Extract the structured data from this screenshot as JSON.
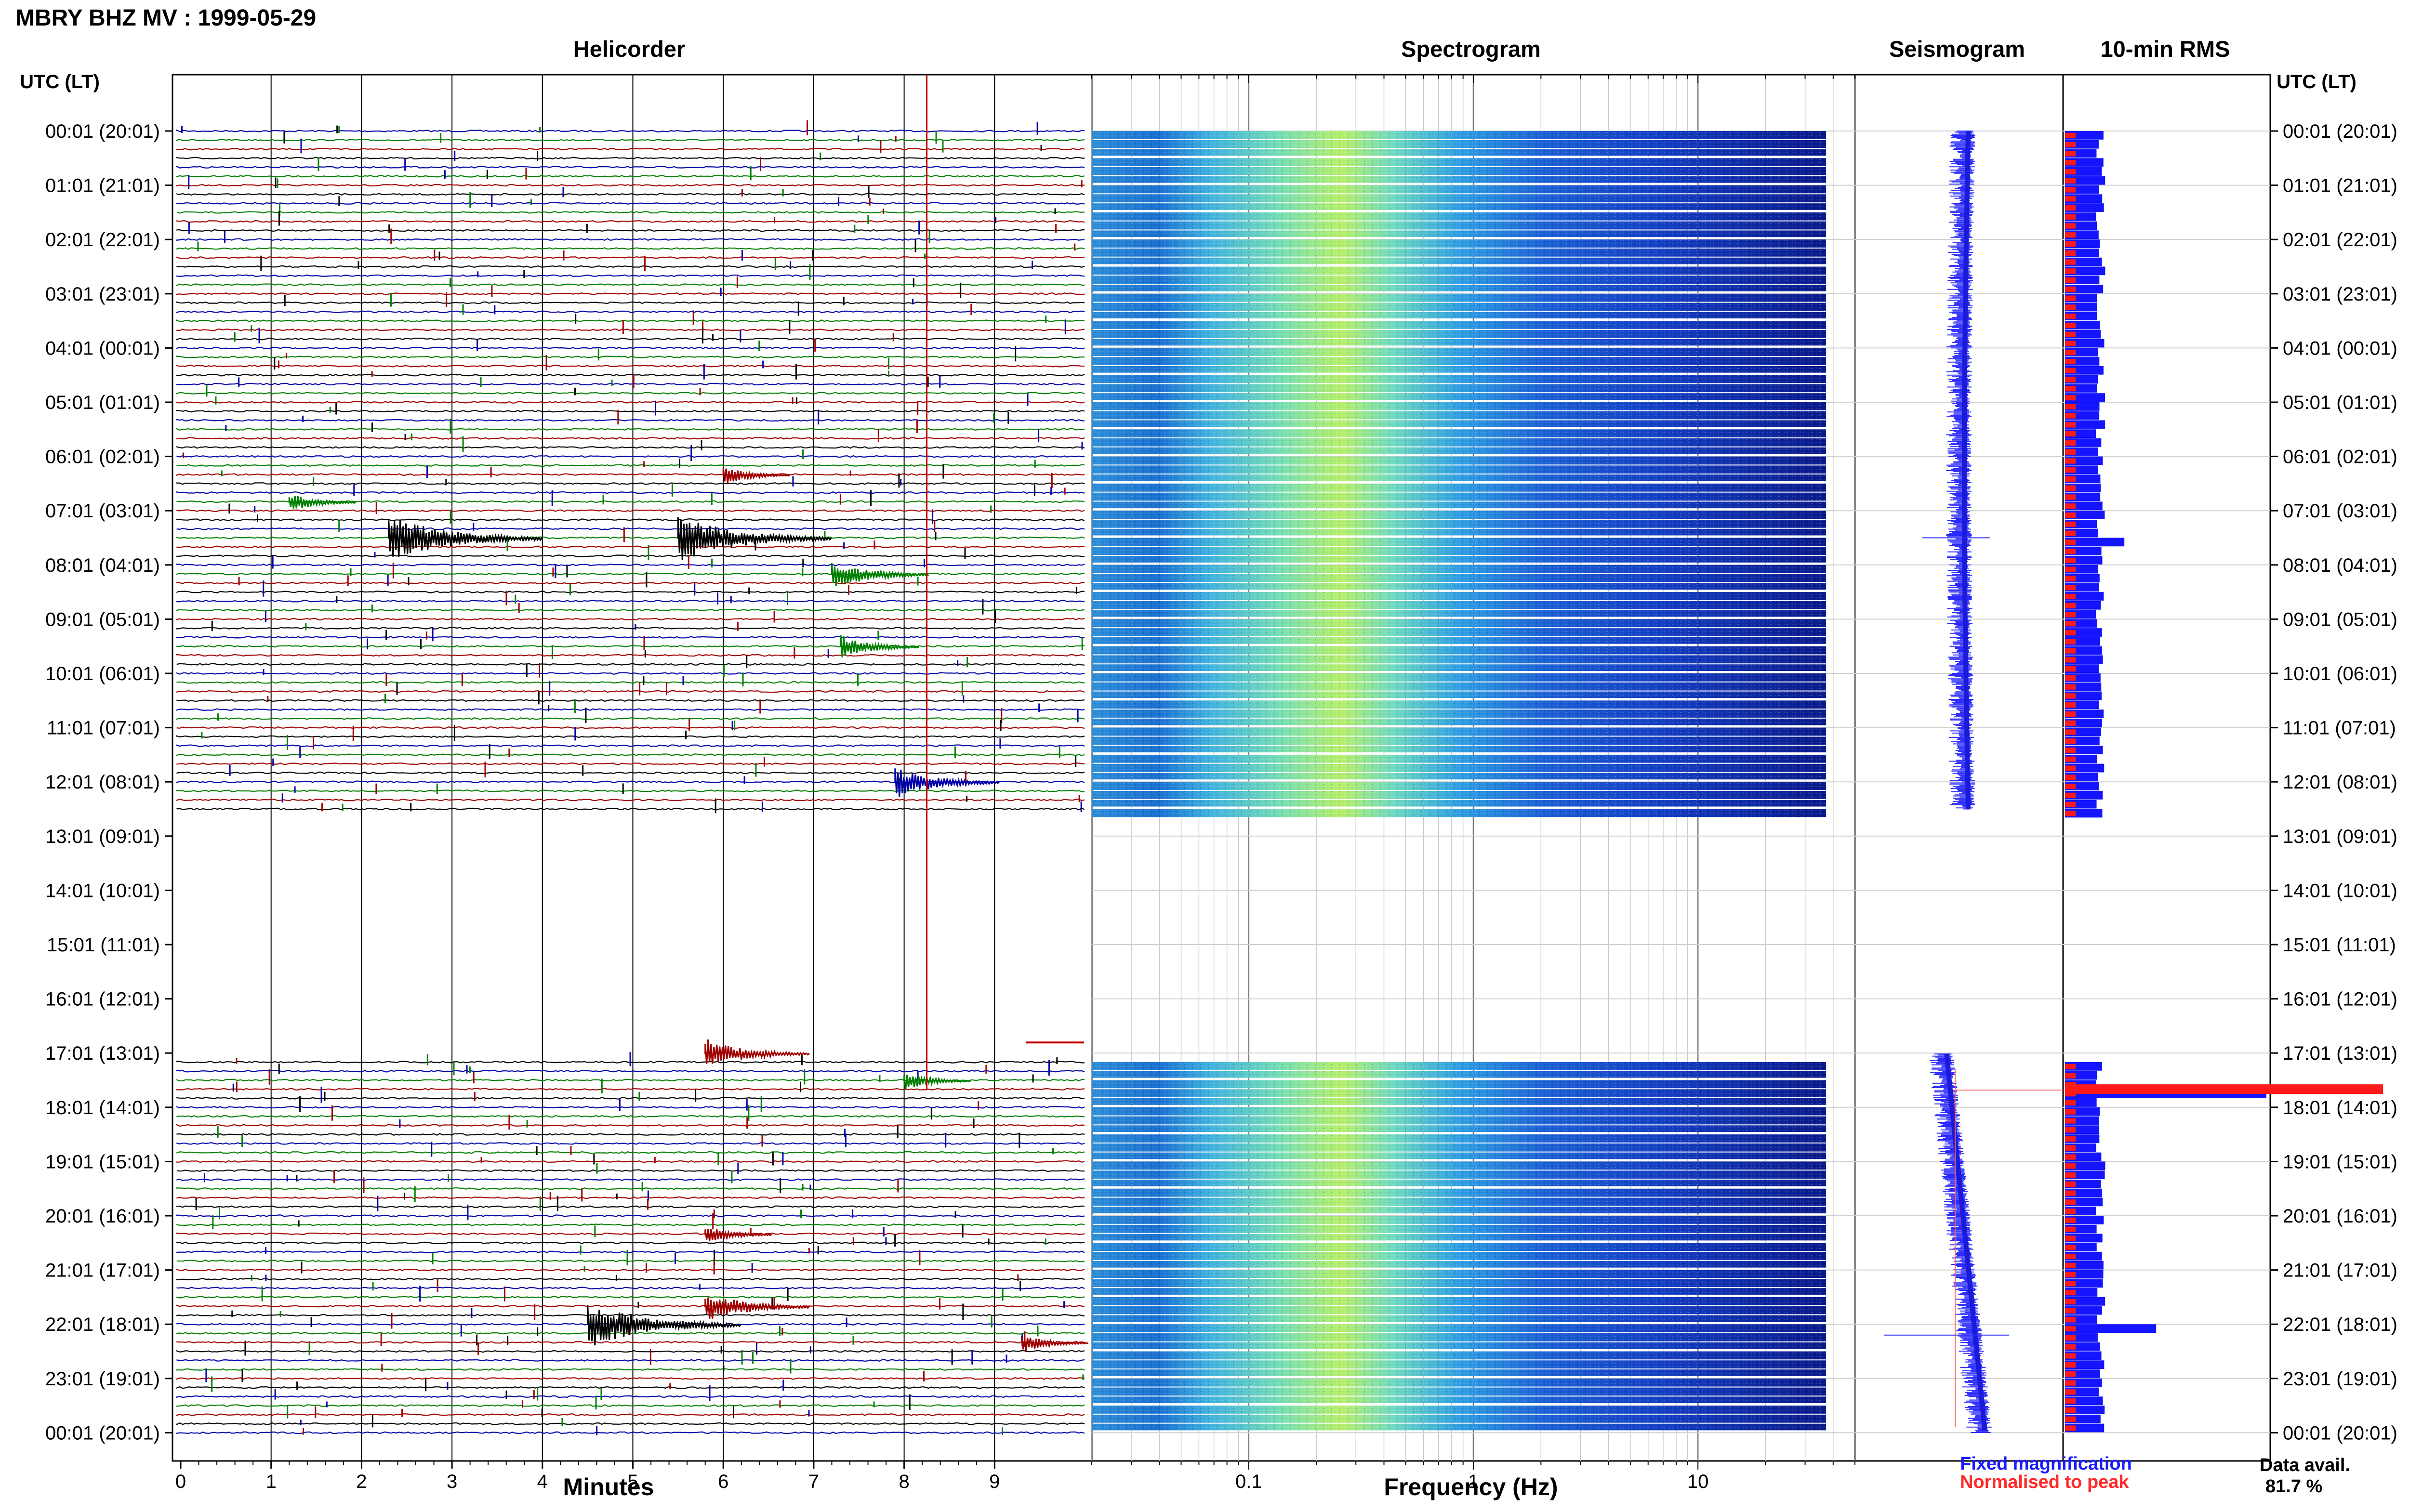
{
  "title": "MBRY BHZ MV : 1999-05-29",
  "panels": {
    "helicorder": "Helicorder",
    "spectrogram": "Spectrogram",
    "seismogram": "Seismogram",
    "rms": "10-min RMS"
  },
  "axis_titles": {
    "left_time": "UTC (LT)",
    "right_time": "UTC (LT)",
    "minutes": "Minutes",
    "frequency": "Frequency (Hz)"
  },
  "legend": {
    "fixed": "Fixed magnification",
    "normalised": "Normalised to peak"
  },
  "availability": {
    "label": "Data avail.",
    "value": "81.7 %"
  },
  "colors": {
    "trace_cycle": [
      "#0000a8",
      "#008000",
      "#a00000",
      "#000000"
    ],
    "seismogram": "#2b2bff",
    "rms_fixed": "#1414ff",
    "rms_normalised": "#ff1a1a",
    "marker": "#c00000",
    "spectrogram_low": "#0a1a8a",
    "spectrogram_high": "#bff53a"
  },
  "chart_data": {
    "type": "heatmap",
    "time_labels": [
      "00:01 (20:01)",
      "01:01 (21:01)",
      "02:01 (22:01)",
      "03:01 (23:01)",
      "04:01 (00:01)",
      "05:01 (01:01)",
      "06:01 (02:01)",
      "07:01 (03:01)",
      "08:01 (04:01)",
      "09:01 (05:01)",
      "10:01 (06:01)",
      "11:01 (07:01)",
      "12:01 (08:01)",
      "13:01 (09:01)",
      "14:01 (10:01)",
      "15:01 (11:01)",
      "16:01 (12:01)",
      "17:01 (13:01)",
      "18:01 (14:01)",
      "19:01 (15:01)",
      "20:01 (16:01)",
      "21:01 (17:01)",
      "22:01 (18:01)",
      "23:01 (19:01)",
      "00:01 (20:01)"
    ],
    "minute_ticks": [
      "0",
      "1",
      "2",
      "3",
      "4",
      "5",
      "6",
      "7",
      "8",
      "9"
    ],
    "minutes_range": [
      0,
      10
    ],
    "frequency_ticks": [
      "0.1",
      "1",
      "10"
    ],
    "frequency_range_hz": [
      0.02,
      50
    ],
    "frequency_scale": "log",
    "rows_per_hour": 6,
    "data_gap_utc": [
      "12:31",
      "17:01"
    ],
    "events": [
      {
        "time_utc": "07:31",
        "minute": 2.3,
        "amp": 1.0
      },
      {
        "time_utc": "07:31",
        "minute": 5.5,
        "amp": 1.0
      },
      {
        "time_utc": "22:01",
        "minute": 4.5,
        "amp": 1.0
      },
      {
        "time_utc": "21:41",
        "minute": 5.8,
        "amp": 0.6
      },
      {
        "time_utc": "17:01",
        "minute": 5.8,
        "amp": 0.6
      },
      {
        "time_utc": "12:01",
        "minute": 7.9,
        "amp": 0.6
      },
      {
        "time_utc": "08:11",
        "minute": 7.2,
        "amp": 0.55
      },
      {
        "time_utc": "09:31",
        "minute": 7.3,
        "amp": 0.4
      },
      {
        "time_utc": "06:21",
        "minute": 6.0,
        "amp": 0.3
      },
      {
        "time_utc": "06:51",
        "minute": 1.2,
        "amp": 0.3
      },
      {
        "time_utc": "17:31",
        "minute": 8.0,
        "amp": 0.3
      },
      {
        "time_utc": "22:21",
        "minute": 9.3,
        "amp": 0.3
      },
      {
        "time_utc": "20:21",
        "minute": 5.8,
        "amp": 0.3
      }
    ],
    "rms_fixed_peaks": [
      {
        "time_utc": "07:31",
        "value": 2.8
      },
      {
        "time_utc": "12:01",
        "value": 1.6
      },
      {
        "time_utc": "22:01",
        "value": 4.3
      },
      {
        "time_utc": "17:41",
        "value": 9.5
      }
    ],
    "marker_utc": "17:41",
    "marker_minute": 8.25,
    "grid": true
  }
}
